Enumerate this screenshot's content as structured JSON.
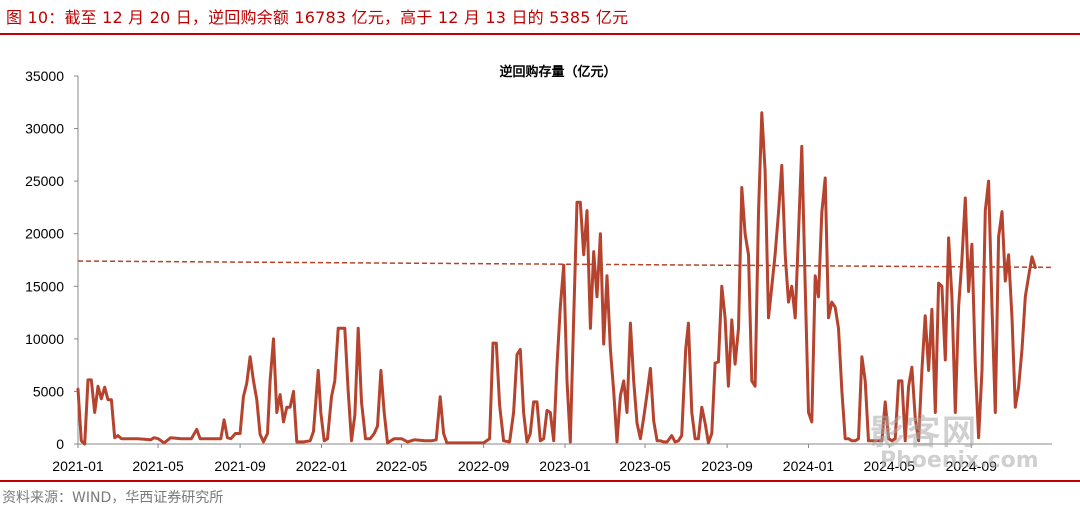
{
  "figure": {
    "title": "图 10：截至 12 月 20 日，逆回购余额 16783 亿元，高于 12 月 13 日的 5385 亿元",
    "source": "资料来源：WIND，华西证券研究所"
  },
  "watermark": {
    "text": "影客网",
    "url": "Phoenix.com"
  },
  "chart_data": {
    "type": "line",
    "title": "逆回购存量（亿元）",
    "xlabel": "",
    "ylabel": "",
    "ylim": [
      0,
      35000
    ],
    "yticks": [
      0,
      5000,
      10000,
      15000,
      20000,
      25000,
      30000,
      35000
    ],
    "xlim": [
      "2021-01",
      "2024-12"
    ],
    "xticks": [
      "2021-01",
      "2021-05",
      "2021-09",
      "2022-01",
      "2022-05",
      "2022-09",
      "2023-01",
      "2023-05",
      "2023-09",
      "2024-01",
      "2024-05",
      "2024-09"
    ],
    "grid": false,
    "legend": "none",
    "colors": {
      "series": "#b5432d",
      "reference": "#b5432d"
    },
    "reference_line": {
      "style": "dashed",
      "y_start": 17400,
      "y_end": 16800
    },
    "series": [
      {
        "points": [
          [
            "2021-01-01",
            5200
          ],
          [
            "2021-01-06",
            300
          ],
          [
            "2021-01-11",
            0
          ],
          [
            "2021-01-16",
            6100
          ],
          [
            "2021-01-21",
            6100
          ],
          [
            "2021-01-26",
            3000
          ],
          [
            "2021-01-31",
            5500
          ],
          [
            "2021-02-05",
            4300
          ],
          [
            "2021-02-10",
            5400
          ],
          [
            "2021-02-15",
            4200
          ],
          [
            "2021-02-20",
            4200
          ],
          [
            "2021-02-25",
            600
          ],
          [
            "2021-03-02",
            800
          ],
          [
            "2021-03-07",
            500
          ],
          [
            "2021-04-01",
            500
          ],
          [
            "2021-04-20",
            400
          ],
          [
            "2021-04-25",
            600
          ],
          [
            "2021-05-01",
            500
          ],
          [
            "2021-05-10",
            100
          ],
          [
            "2021-05-20",
            600
          ],
          [
            "2021-06-05",
            500
          ],
          [
            "2021-06-20",
            500
          ],
          [
            "2021-06-28",
            1400
          ],
          [
            "2021-07-03",
            500
          ],
          [
            "2021-07-20",
            500
          ],
          [
            "2021-07-28",
            500
          ],
          [
            "2021-08-03",
            500
          ],
          [
            "2021-08-08",
            2300
          ],
          [
            "2021-08-13",
            600
          ],
          [
            "2021-08-18",
            500
          ],
          [
            "2021-08-25",
            1000
          ],
          [
            "2021-09-01",
            1000
          ],
          [
            "2021-09-06",
            4500
          ],
          [
            "2021-09-11",
            5800
          ],
          [
            "2021-09-16",
            8300
          ],
          [
            "2021-09-21",
            6000
          ],
          [
            "2021-09-26",
            4200
          ],
          [
            "2021-10-01",
            900
          ],
          [
            "2021-10-06",
            200
          ],
          [
            "2021-10-12",
            1000
          ],
          [
            "2021-10-16",
            6000
          ],
          [
            "2021-10-21",
            10000
          ],
          [
            "2021-10-26",
            3000
          ],
          [
            "2021-10-31",
            4700
          ],
          [
            "2021-11-05",
            2100
          ],
          [
            "2021-11-10",
            3500
          ],
          [
            "2021-11-15",
            3500
          ],
          [
            "2021-11-20",
            5000
          ],
          [
            "2021-11-25",
            200
          ],
          [
            "2021-12-05",
            200
          ],
          [
            "2021-12-15",
            300
          ],
          [
            "2021-12-20",
            1200
          ],
          [
            "2021-12-27",
            7000
          ],
          [
            "2021-12-31",
            3000
          ],
          [
            "2022-01-05",
            300
          ],
          [
            "2022-01-10",
            500
          ],
          [
            "2022-01-16",
            4500
          ],
          [
            "2022-01-21",
            6000
          ],
          [
            "2022-01-26",
            11000
          ],
          [
            "2022-01-31",
            11000
          ],
          [
            "2022-02-05",
            11000
          ],
          [
            "2022-02-10",
            5000
          ],
          [
            "2022-02-15",
            300
          ],
          [
            "2022-02-20",
            2800
          ],
          [
            "2022-02-25",
            11000
          ],
          [
            "2022-03-02",
            4000
          ],
          [
            "2022-03-08",
            500
          ],
          [
            "2022-03-15",
            500
          ],
          [
            "2022-03-21",
            1000
          ],
          [
            "2022-03-26",
            1700
          ],
          [
            "2022-03-31",
            7000
          ],
          [
            "2022-04-05",
            3000
          ],
          [
            "2022-04-10",
            100
          ],
          [
            "2022-04-20",
            500
          ],
          [
            "2022-05-01",
            500
          ],
          [
            "2022-05-10",
            200
          ],
          [
            "2022-05-20",
            400
          ],
          [
            "2022-06-05",
            300
          ],
          [
            "2022-06-15",
            300
          ],
          [
            "2022-06-22",
            400
          ],
          [
            "2022-06-28",
            4500
          ],
          [
            "2022-07-03",
            1000
          ],
          [
            "2022-07-08",
            100
          ],
          [
            "2022-07-20",
            100
          ],
          [
            "2022-08-01",
            100
          ],
          [
            "2022-08-20",
            100
          ],
          [
            "2022-09-01",
            100
          ],
          [
            "2022-09-10",
            500
          ],
          [
            "2022-09-15",
            9600
          ],
          [
            "2022-09-20",
            9600
          ],
          [
            "2022-09-25",
            3700
          ],
          [
            "2022-10-01",
            300
          ],
          [
            "2022-10-10",
            200
          ],
          [
            "2022-10-16",
            3000
          ],
          [
            "2022-10-21",
            8500
          ],
          [
            "2022-10-26",
            9000
          ],
          [
            "2022-10-31",
            3000
          ],
          [
            "2022-11-05",
            200
          ],
          [
            "2022-11-10",
            1000
          ],
          [
            "2022-11-15",
            4000
          ],
          [
            "2022-11-20",
            4000
          ],
          [
            "2022-11-25",
            300
          ],
          [
            "2022-11-30",
            500
          ],
          [
            "2022-12-05",
            3200
          ],
          [
            "2022-12-10",
            3000
          ],
          [
            "2022-12-15",
            300
          ],
          [
            "2022-12-20",
            7500
          ],
          [
            "2022-12-25",
            13000
          ],
          [
            "2022-12-30",
            17000
          ],
          [
            "2023-01-04",
            6000
          ],
          [
            "2023-01-09",
            200
          ],
          [
            "2023-01-14",
            12000
          ],
          [
            "2023-01-19",
            23000
          ],
          [
            "2023-01-24",
            23000
          ],
          [
            "2023-01-29",
            18000
          ],
          [
            "2023-02-03",
            22200
          ],
          [
            "2023-02-08",
            11000
          ],
          [
            "2023-02-13",
            18300
          ],
          [
            "2023-02-18",
            14000
          ],
          [
            "2023-02-23",
            20000
          ],
          [
            "2023-02-28",
            9500
          ],
          [
            "2023-03-05",
            16000
          ],
          [
            "2023-03-10",
            9000
          ],
          [
            "2023-03-15",
            5000
          ],
          [
            "2023-03-20",
            200
          ],
          [
            "2023-03-25",
            4600
          ],
          [
            "2023-03-30",
            6000
          ],
          [
            "2023-04-04",
            3000
          ],
          [
            "2023-04-09",
            11500
          ],
          [
            "2023-04-14",
            6000
          ],
          [
            "2023-04-19",
            2000
          ],
          [
            "2023-04-24",
            500
          ],
          [
            "2023-04-29",
            2500
          ],
          [
            "2023-05-04",
            4800
          ],
          [
            "2023-05-09",
            7200
          ],
          [
            "2023-05-14",
            2200
          ],
          [
            "2023-05-19",
            300
          ],
          [
            "2023-05-24",
            300
          ],
          [
            "2023-05-29",
            200
          ],
          [
            "2023-06-03",
            200
          ],
          [
            "2023-06-10",
            800
          ],
          [
            "2023-06-15",
            200
          ],
          [
            "2023-06-20",
            300
          ],
          [
            "2023-06-25",
            800
          ],
          [
            "2023-07-01",
            9000
          ],
          [
            "2023-07-05",
            11500
          ],
          [
            "2023-07-10",
            3000
          ],
          [
            "2023-07-15",
            500
          ],
          [
            "2023-07-20",
            500
          ],
          [
            "2023-07-25",
            3500
          ],
          [
            "2023-07-30",
            2000
          ],
          [
            "2023-08-04",
            100
          ],
          [
            "2023-08-09",
            1000
          ],
          [
            "2023-08-14",
            7700
          ],
          [
            "2023-08-19",
            7800
          ],
          [
            "2023-08-24",
            15000
          ],
          [
            "2023-08-29",
            12000
          ],
          [
            "2023-09-03",
            5500
          ],
          [
            "2023-09-08",
            11800
          ],
          [
            "2023-09-13",
            7600
          ],
          [
            "2023-09-18",
            11000
          ],
          [
            "2023-09-23",
            24400
          ],
          [
            "2023-09-28",
            20000
          ],
          [
            "2023-10-03",
            18000
          ],
          [
            "2023-10-08",
            6000
          ],
          [
            "2023-10-13",
            5500
          ],
          [
            "2023-10-18",
            22000
          ],
          [
            "2023-10-23",
            31500
          ],
          [
            "2023-10-28",
            26000
          ],
          [
            "2023-11-02",
            12000
          ],
          [
            "2023-11-07",
            15000
          ],
          [
            "2023-11-12",
            18000
          ],
          [
            "2023-11-17",
            22000
          ],
          [
            "2023-11-22",
            26500
          ],
          [
            "2023-11-27",
            18000
          ],
          [
            "2023-12-02",
            13500
          ],
          [
            "2023-12-07",
            15000
          ],
          [
            "2023-12-12",
            12000
          ],
          [
            "2023-12-17",
            20000
          ],
          [
            "2023-12-22",
            28300
          ],
          [
            "2023-12-27",
            15000
          ],
          [
            "2024-01-01",
            3000
          ],
          [
            "2024-01-06",
            2100
          ],
          [
            "2024-01-11",
            16000
          ],
          [
            "2024-01-16",
            14000
          ],
          [
            "2024-01-21",
            22000
          ],
          [
            "2024-01-26",
            25300
          ],
          [
            "2024-01-31",
            12000
          ],
          [
            "2024-02-05",
            13500
          ],
          [
            "2024-02-10",
            13000
          ],
          [
            "2024-02-15",
            11000
          ],
          [
            "2024-02-20",
            5000
          ],
          [
            "2024-02-25",
            500
          ],
          [
            "2024-03-01",
            500
          ],
          [
            "2024-03-06",
            300
          ],
          [
            "2024-03-11",
            300
          ],
          [
            "2024-03-16",
            500
          ],
          [
            "2024-03-21",
            8300
          ],
          [
            "2024-03-26",
            6000
          ],
          [
            "2024-03-31",
            300
          ],
          [
            "2024-04-10",
            300
          ],
          [
            "2024-04-20",
            300
          ],
          [
            "2024-04-25",
            4000
          ],
          [
            "2024-04-30",
            500
          ],
          [
            "2024-05-05",
            300
          ],
          [
            "2024-05-10",
            500
          ],
          [
            "2024-05-15",
            6000
          ],
          [
            "2024-05-20",
            6000
          ],
          [
            "2024-05-25",
            300
          ],
          [
            "2024-05-30",
            5500
          ],
          [
            "2024-06-04",
            7300
          ],
          [
            "2024-06-09",
            2500
          ],
          [
            "2024-06-14",
            300
          ],
          [
            "2024-06-19",
            7000
          ],
          [
            "2024-06-24",
            12200
          ],
          [
            "2024-06-29",
            7000
          ],
          [
            "2024-07-04",
            12800
          ],
          [
            "2024-07-09",
            3000
          ],
          [
            "2024-07-14",
            15300
          ],
          [
            "2024-07-19",
            15000
          ],
          [
            "2024-07-24",
            8000
          ],
          [
            "2024-07-29",
            19600
          ],
          [
            "2024-08-03",
            14000
          ],
          [
            "2024-08-08",
            3000
          ],
          [
            "2024-08-13",
            13000
          ],
          [
            "2024-08-18",
            17500
          ],
          [
            "2024-08-23",
            23400
          ],
          [
            "2024-08-28",
            14500
          ],
          [
            "2024-09-02",
            19000
          ],
          [
            "2024-09-07",
            7500
          ],
          [
            "2024-09-12",
            600
          ],
          [
            "2024-09-17",
            7000
          ],
          [
            "2024-09-22",
            22200
          ],
          [
            "2024-09-27",
            25000
          ],
          [
            "2024-10-02",
            13000
          ],
          [
            "2024-10-07",
            3000
          ],
          [
            "2024-10-12",
            19700
          ],
          [
            "2024-10-17",
            22100
          ],
          [
            "2024-10-22",
            15500
          ],
          [
            "2024-10-27",
            18000
          ],
          [
            "2024-11-01",
            12000
          ],
          [
            "2024-11-06",
            3500
          ],
          [
            "2024-11-11",
            5400
          ],
          [
            "2024-11-16",
            9000
          ],
          [
            "2024-11-21",
            14000
          ],
          [
            "2024-11-26",
            16000
          ],
          [
            "2024-12-01",
            17800
          ],
          [
            "2024-12-06",
            16800
          ]
        ]
      }
    ]
  }
}
